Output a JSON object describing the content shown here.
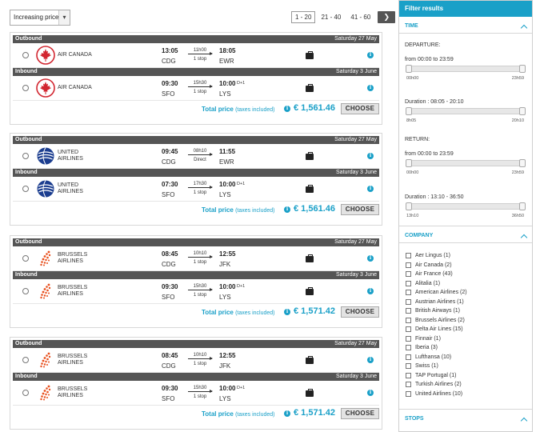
{
  "sort": {
    "selected": "Increasing price"
  },
  "pagination": {
    "pages": [
      "1 - 20",
      "21 - 40",
      "41 - 60"
    ],
    "active": 0,
    "next_icon": "chevron-right"
  },
  "labels": {
    "outbound": "Outbound",
    "inbound": "Inbound",
    "total_price": "Total price",
    "taxes": "(taxes included)",
    "choose": "CHOOSE",
    "day_plus": "D+1"
  },
  "results": [
    {
      "airline_logo": "air-canada-maple-leaf",
      "price": "€ 1,561.46",
      "outbound": {
        "date": "Saturday 27 May",
        "airline_line1": "AIR CANADA",
        "airline_line2": "",
        "dep_time": "13:05",
        "dep_code": "CDG",
        "duration": "11h00",
        "stops": "1 stop",
        "arr_time": "18:05",
        "arr_code": "EWR",
        "day_plus": ""
      },
      "inbound": {
        "date": "Saturday 3 June",
        "airline_line1": "AIR CANADA",
        "airline_line2": "",
        "dep_time": "09:30",
        "dep_code": "SFO",
        "duration": "15h30",
        "stops": "1 stop",
        "arr_time": "10:00",
        "arr_code": "LYS",
        "day_plus": "D+1"
      }
    },
    {
      "airline_logo": "united-globe",
      "price": "€ 1,561.46",
      "outbound": {
        "date": "Saturday 27 May",
        "airline_line1": "UNITED",
        "airline_line2": "AIRLINES",
        "dep_time": "09:45",
        "dep_code": "CDG",
        "duration": "08h10",
        "stops": "Direct",
        "arr_time": "11:55",
        "arr_code": "EWR",
        "day_plus": ""
      },
      "inbound": {
        "date": "Saturday 3 June",
        "airline_line1": "UNITED",
        "airline_line2": "AIRLINES",
        "dep_time": "07:30",
        "dep_code": "SFO",
        "duration": "17h30",
        "stops": "1 stop",
        "arr_time": "10:00",
        "arr_code": "LYS",
        "day_plus": "D+1"
      }
    },
    {
      "airline_logo": "brussels-dots",
      "price": "€ 1,571.42",
      "outbound": {
        "date": "Saturday 27 May",
        "airline_line1": "BRUSSELS",
        "airline_line2": "AIRLINES",
        "dep_time": "08:45",
        "dep_code": "CDG",
        "duration": "10h10",
        "stops": "1 stop",
        "arr_time": "12:55",
        "arr_code": "JFK",
        "day_plus": ""
      },
      "inbound": {
        "date": "Saturday 3 June",
        "airline_line1": "BRUSSELS",
        "airline_line2": "AIRLINES",
        "dep_time": "09:30",
        "dep_code": "SFO",
        "duration": "15h30",
        "stops": "1 stop",
        "arr_time": "10:00",
        "arr_code": "LYS",
        "day_plus": "D+1"
      }
    },
    {
      "airline_logo": "brussels-dots",
      "price": "€ 1,571.42",
      "outbound": {
        "date": "Saturday 27 May",
        "airline_line1": "BRUSSELS",
        "airline_line2": "AIRLINES",
        "dep_time": "08:45",
        "dep_code": "CDG",
        "duration": "10h10",
        "stops": "1 stop",
        "arr_time": "12:55",
        "arr_code": "JFK",
        "day_plus": ""
      },
      "inbound": {
        "date": "Saturday 3 June",
        "airline_line1": "BRUSSELS",
        "airline_line2": "AIRLINES",
        "dep_time": "09:30",
        "dep_code": "SFO",
        "duration": "15h30",
        "stops": "1 stop",
        "arr_time": "10:00",
        "arr_code": "LYS",
        "day_plus": "D+1"
      }
    }
  ],
  "filters": {
    "title": "Filter results",
    "time": {
      "title": "TIME",
      "departure_label": "DEPARTURE:",
      "departure_range": "from 00:00 to 23:59",
      "dep_slider": {
        "min": "00h00",
        "max": "23h59"
      },
      "dep_duration": "Duration : 08:05 - 20:10",
      "dep_dur_slider": {
        "min": "8h05",
        "max": "20h10"
      },
      "return_label": "RETURN:",
      "return_range": "from 00:00 to 23:59",
      "ret_slider": {
        "min": "00h00",
        "max": "23h59"
      },
      "ret_duration": "Duration : 13:10 - 36:50",
      "ret_dur_slider": {
        "min": "13h10",
        "max": "36h50"
      }
    },
    "company": {
      "title": "COMPANY",
      "items": [
        "Aer Lingus (1)",
        "Air Canada (2)",
        "Air France (43)",
        "Alitalia (1)",
        "American Airlines (2)",
        "Austrian Airlines (1)",
        "British Airways (1)",
        "Brussels Airlines (2)",
        "Delta Air Lines (15)",
        "Finnair (1)",
        "Iberia (3)",
        "Lufthansa (10)",
        "Swiss (1)",
        "TAP Portugal (1)",
        "Turkish Airlines (2)",
        "United Airlines (10)"
      ]
    },
    "stops": {
      "title": "STOPS"
    }
  },
  "colors": {
    "accent": "#1aa0c8",
    "header_dark": "#555555",
    "air_canada_red": "#d22630",
    "united_blue": "#1b3d8f",
    "brussels_orange": "#e84e1b"
  }
}
